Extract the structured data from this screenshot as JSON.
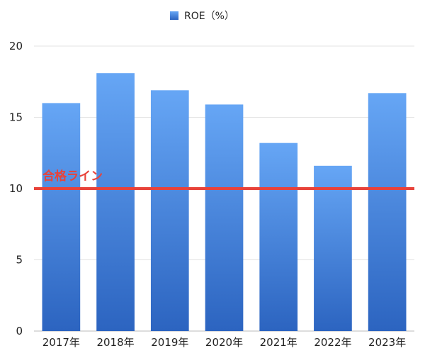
{
  "chart_data": {
    "type": "bar",
    "categories": [
      "2017年",
      "2018年",
      "2019年",
      "2020年",
      "2021年",
      "2022年",
      "2023年"
    ],
    "series": [
      {
        "name": "ROE（%）",
        "values": [
          16.0,
          18.1,
          16.9,
          15.9,
          13.2,
          11.6,
          16.7
        ]
      }
    ],
    "ylim": [
      0,
      20
    ],
    "yticks": [
      "0",
      "5",
      "10",
      "15",
      "20"
    ],
    "grid": true,
    "legend_position": "top-center",
    "reference_line": {
      "value": 10,
      "label": "合格ライン"
    },
    "colors": {
      "bar_top": "#66a6f5",
      "bar_bottom": "#2c64c0",
      "reference": "#e8433a"
    }
  }
}
